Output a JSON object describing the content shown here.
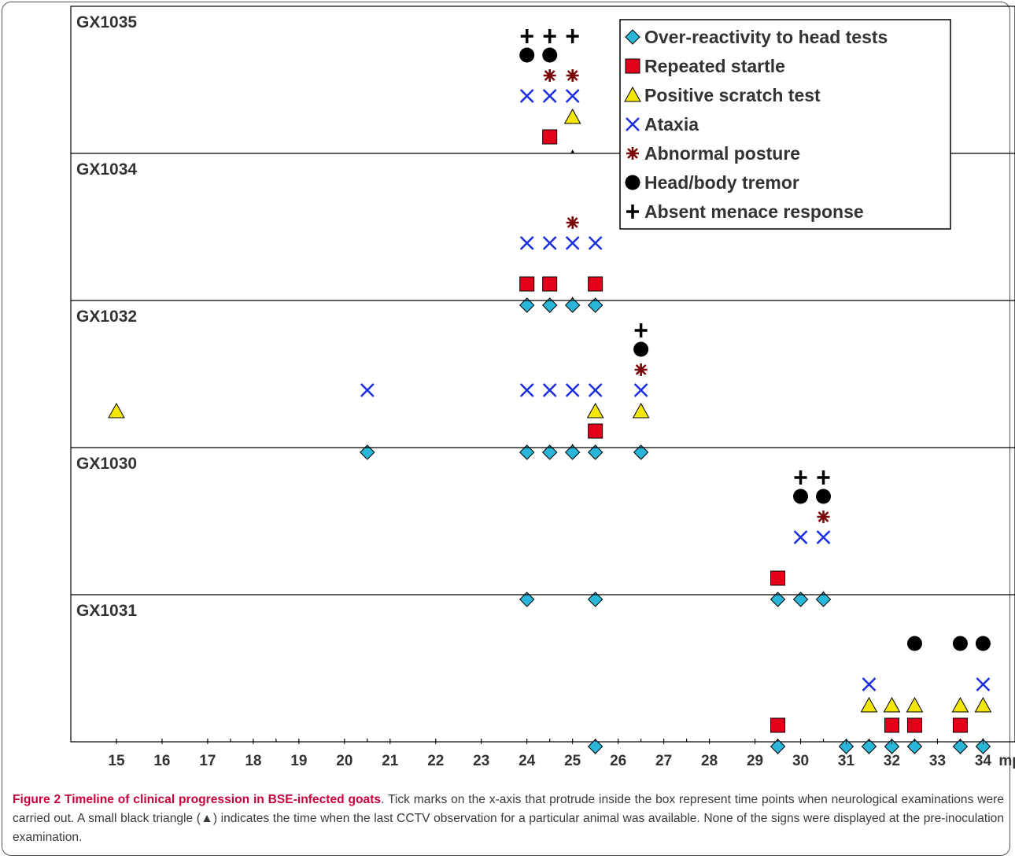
{
  "chart_data": {
    "type": "scatter",
    "x_unit": "mpi",
    "xlim": [
      14.0,
      34.7
    ],
    "x_ticks": [
      15,
      16,
      17,
      18,
      19,
      20,
      21,
      22,
      23,
      24,
      25,
      26,
      27,
      28,
      29,
      30,
      31,
      32,
      33,
      34
    ],
    "exam_ticks": [
      15,
      16,
      17,
      17.5,
      18,
      18.5,
      19,
      20,
      20.5,
      21,
      22,
      23,
      24,
      24.5,
      25,
      25.5,
      26,
      26.5,
      27,
      27.5,
      28,
      29,
      29.5,
      30,
      30.5,
      31,
      31.5,
      32,
      32.5,
      33,
      33.5,
      34
    ],
    "signs": [
      {
        "key": "over_reactivity",
        "label": "Over-reactivity to head tests",
        "marker": "diamond",
        "color": "#29b6d8"
      },
      {
        "key": "startle",
        "label": "Repeated startle",
        "marker": "square",
        "color": "#e3001b"
      },
      {
        "key": "scratch",
        "label": "Positive scratch test",
        "marker": "triangle",
        "color": "#f2e60a"
      },
      {
        "key": "ataxia",
        "label": "Ataxia",
        "marker": "x",
        "color": "#1a2ee0"
      },
      {
        "key": "posture",
        "label": "Abnormal posture",
        "marker": "asterisk",
        "color": "#7a0a0a"
      },
      {
        "key": "tremor",
        "label": "Head/body tremor",
        "marker": "circle",
        "color": "#000000"
      },
      {
        "key": "menace",
        "label": "Absent menace response",
        "marker": "plus",
        "color": "#000000"
      }
    ],
    "panels": [
      {
        "name": "GX1035",
        "last_cctv": 25.0,
        "points": {
          "over_reactivity": [],
          "startle": [
            24.5
          ],
          "scratch": [
            25
          ],
          "ataxia": [
            24,
            24.5,
            25
          ],
          "posture": [
            24.5,
            25
          ],
          "tremor": [
            24,
            24.5
          ],
          "menace": [
            24,
            24.5,
            25
          ]
        }
      },
      {
        "name": "GX1034",
        "last_cctv": 25.0,
        "points": {
          "over_reactivity": [
            24,
            24.5,
            25,
            25.5
          ],
          "startle": [
            24,
            24.5,
            25.5
          ],
          "scratch": [],
          "ataxia": [
            24,
            24.5,
            25,
            25.5
          ],
          "posture": [
            25
          ],
          "tremor": [],
          "menace": []
        }
      },
      {
        "name": "GX1032",
        "last_cctv": 25.0,
        "points": {
          "over_reactivity": [
            20.5,
            24,
            24.5,
            25,
            25.5,
            26.5
          ],
          "startle": [
            25.5
          ],
          "scratch": [
            15,
            25.5,
            26.5
          ],
          "ataxia": [
            20.5,
            24,
            24.5,
            25,
            25.5,
            26.5
          ],
          "posture": [
            26.5
          ],
          "tremor": [
            26.5
          ],
          "menace": [
            26.5
          ]
        }
      },
      {
        "name": "GX1030",
        "last_cctv": 30.5,
        "points": {
          "over_reactivity": [
            24,
            25.5,
            29.5,
            30,
            30.5
          ],
          "startle": [
            29.5
          ],
          "scratch": [],
          "ataxia": [
            30,
            30.5
          ],
          "posture": [
            30.5
          ],
          "tremor": [
            30,
            30.5
          ],
          "menace": [
            30,
            30.5
          ]
        }
      },
      {
        "name": "GX1031",
        "last_cctv": 34.0,
        "points": {
          "over_reactivity": [
            25.5,
            29.5,
            31,
            31.5,
            32,
            32.5,
            33.5,
            34
          ],
          "startle": [
            29.5,
            32,
            32.5,
            33.5
          ],
          "scratch": [
            31.5,
            32,
            32.5,
            33.5,
            34
          ],
          "ataxia": [
            31.5,
            34
          ],
          "posture": [],
          "tremor": [
            32.5,
            33.5,
            34
          ],
          "menace": []
        }
      }
    ]
  },
  "caption": {
    "label": "Figure 2 Timeline of clinical progression in BSE-infected goats",
    "text": ". Tick marks on the x-axis that protrude inside the box represent time points when neurological examinations were carried out. A small black triangle (▲) indicates the time when the last CCTV observation for a particular animal was available. None of the signs were displayed at the pre-inoculation examination."
  }
}
